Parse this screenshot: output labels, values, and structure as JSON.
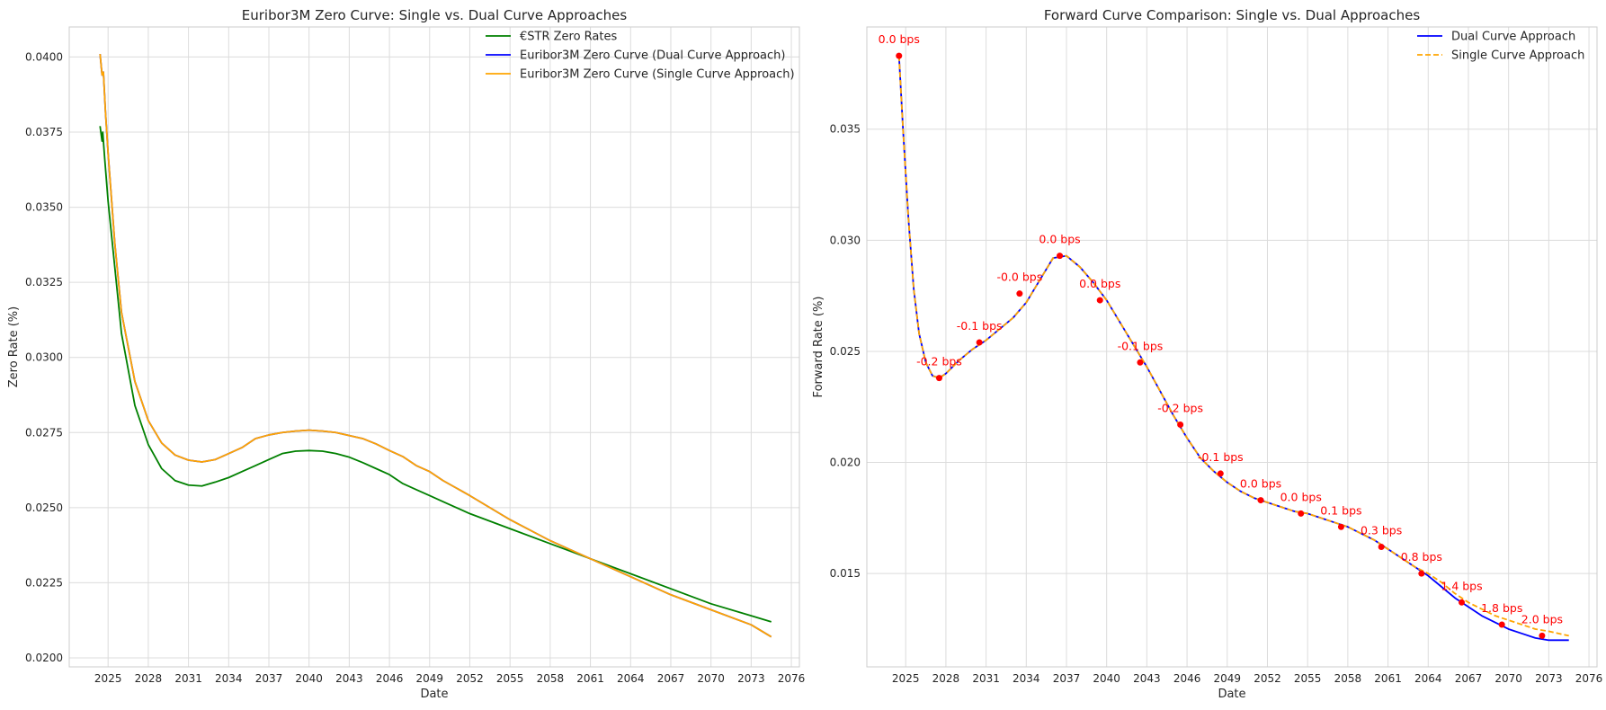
{
  "chart_data": [
    {
      "type": "line",
      "title": "Euribor3M Zero Curve: Single vs. Dual Curve Approaches",
      "xlabel": "Date",
      "ylabel": "Zero Rate (%)",
      "xlim": [
        2022.1,
        2076.6
      ],
      "ylim": [
        0.0197,
        0.041
      ],
      "xticks": [
        "2025",
        "2028",
        "2031",
        "2034",
        "2037",
        "2040",
        "2043",
        "2046",
        "2049",
        "2052",
        "2055",
        "2058",
        "2061",
        "2064",
        "2067",
        "2070",
        "2073",
        "2076"
      ],
      "yticks": [
        "0.0200",
        "0.0225",
        "0.0250",
        "0.0275",
        "0.0300",
        "0.0325",
        "0.0350",
        "0.0375",
        "0.0400"
      ],
      "grid": true,
      "legend_position": "top-right",
      "series": [
        {
          "name": "€STR Zero Rates",
          "color": "#008000",
          "style": "solid",
          "x": [
            2024.4,
            2024.55,
            2024.6,
            2024.75,
            2025,
            2025.5,
            2026,
            2027,
            2028,
            2029,
            2030,
            2031,
            2032,
            2033,
            2034,
            2035,
            2036,
            2037,
            2038,
            2039,
            2040,
            2041,
            2042,
            2043,
            2044,
            2045,
            2046,
            2047,
            2048,
            2049,
            2050,
            2052,
            2055,
            2058,
            2061,
            2064,
            2067,
            2070,
            2073,
            2074.5
          ],
          "y": [
            0.0377,
            0.0372,
            0.0375,
            0.0366,
            0.0352,
            0.033,
            0.0308,
            0.0284,
            0.0271,
            0.0263,
            0.0259,
            0.02575,
            0.02572,
            0.02585,
            0.026,
            0.0262,
            0.0264,
            0.0266,
            0.0268,
            0.02688,
            0.0269,
            0.02688,
            0.0268,
            0.02668,
            0.0265,
            0.0263,
            0.0261,
            0.0258,
            0.0256,
            0.0254,
            0.0252,
            0.0248,
            0.0243,
            0.0238,
            0.0233,
            0.0228,
            0.0223,
            0.0218,
            0.0214,
            0.0212
          ]
        },
        {
          "name": "Euribor3M Zero Curve (Dual Curve Approach)",
          "color": "#0000ff",
          "style": "solid",
          "x": [
            2024.4,
            2024.55,
            2024.65,
            2024.8,
            2025,
            2025.5,
            2026,
            2027,
            2028,
            2029,
            2030,
            2031,
            2032,
            2033,
            2034,
            2035,
            2036,
            2037,
            2038,
            2039,
            2040,
            2041,
            2042,
            2043,
            2044,
            2045,
            2046,
            2047,
            2048,
            2049,
            2050,
            2052,
            2055,
            2058,
            2061,
            2064,
            2067,
            2070,
            2073,
            2074.5
          ],
          "y": [
            0.0401,
            0.0394,
            0.0395,
            0.0382,
            0.0368,
            0.0338,
            0.0315,
            0.0292,
            0.0279,
            0.02715,
            0.02675,
            0.02658,
            0.02652,
            0.0266,
            0.0268,
            0.027,
            0.0273,
            0.02742,
            0.0275,
            0.02755,
            0.02758,
            0.02755,
            0.0275,
            0.0274,
            0.0273,
            0.02712,
            0.0269,
            0.0267,
            0.0264,
            0.0262,
            0.0259,
            0.0254,
            0.0246,
            0.0239,
            0.0233,
            0.0227,
            0.0221,
            0.0216,
            0.0211,
            0.0207
          ]
        },
        {
          "name": "Euribor3M Zero Curve (Single Curve Approach)",
          "color": "#ffa500",
          "style": "solid",
          "x": [
            2024.4,
            2024.55,
            2024.65,
            2024.8,
            2025,
            2025.5,
            2026,
            2027,
            2028,
            2029,
            2030,
            2031,
            2032,
            2033,
            2034,
            2035,
            2036,
            2037,
            2038,
            2039,
            2040,
            2041,
            2042,
            2043,
            2044,
            2045,
            2046,
            2047,
            2048,
            2049,
            2050,
            2052,
            2055,
            2058,
            2061,
            2064,
            2067,
            2070,
            2073,
            2074.5
          ],
          "y": [
            0.0401,
            0.0394,
            0.0395,
            0.0382,
            0.0368,
            0.0338,
            0.0315,
            0.0292,
            0.0279,
            0.02715,
            0.02675,
            0.02658,
            0.02652,
            0.0266,
            0.0268,
            0.027,
            0.0273,
            0.02742,
            0.0275,
            0.02755,
            0.02758,
            0.02755,
            0.0275,
            0.0274,
            0.0273,
            0.02712,
            0.0269,
            0.0267,
            0.0264,
            0.0262,
            0.0259,
            0.0254,
            0.0246,
            0.0239,
            0.0233,
            0.0227,
            0.0221,
            0.0216,
            0.0211,
            0.0207
          ]
        }
      ]
    },
    {
      "type": "line",
      "title": "Forward Curve Comparison: Single vs. Dual Approaches",
      "xlabel": "Date",
      "ylabel": "Forward Rate (%)",
      "xlim": [
        2022.1,
        2076.6
      ],
      "ylim": [
        0.0108,
        0.0396
      ],
      "xticks": [
        "2025",
        "2028",
        "2031",
        "2034",
        "2037",
        "2040",
        "2043",
        "2046",
        "2049",
        "2052",
        "2055",
        "2058",
        "2061",
        "2064",
        "2067",
        "2070",
        "2073",
        "2076"
      ],
      "yticks": [
        "0.015",
        "0.020",
        "0.025",
        "0.030",
        "0.035"
      ],
      "grid": true,
      "legend_position": "top-right",
      "series": [
        {
          "name": "Dual Curve Approach",
          "color": "#0000ff",
          "style": "solid",
          "x": [
            2024.5,
            2024.8,
            2025.2,
            2025.6,
            2026,
            2026.5,
            2027,
            2027.5,
            2028,
            2029,
            2030,
            2031,
            2032,
            2033,
            2034,
            2035,
            2036,
            2037,
            2038,
            2039,
            2040,
            2041,
            2042,
            2043,
            2044,
            2045,
            2046,
            2047,
            2048,
            2049,
            2050,
            2051,
            2052,
            2053,
            2054,
            2055,
            2056,
            2057,
            2058,
            2059,
            2060,
            2061,
            2062,
            2063,
            2064,
            2065,
            2066,
            2067,
            2068,
            2069,
            2070,
            2071,
            2072,
            2073,
            2074.5
          ],
          "y": [
            0.0383,
            0.035,
            0.031,
            0.0278,
            0.0258,
            0.0245,
            0.0239,
            0.0238,
            0.024,
            0.0246,
            0.0251,
            0.0255,
            0.026,
            0.0265,
            0.0272,
            0.0282,
            0.0292,
            0.0293,
            0.0288,
            0.0281,
            0.0273,
            0.0263,
            0.0253,
            0.0243,
            0.0232,
            0.0221,
            0.0211,
            0.0202,
            0.0196,
            0.0191,
            0.0187,
            0.0184,
            0.0182,
            0.018,
            0.0178,
            0.0177,
            0.0175,
            0.0173,
            0.0171,
            0.0168,
            0.0165,
            0.0161,
            0.0157,
            0.0153,
            0.0149,
            0.0144,
            0.0139,
            0.0135,
            0.0131,
            0.0128,
            0.0125,
            0.0123,
            0.0121,
            0.012,
            0.012
          ]
        },
        {
          "name": "Single Curve Approach",
          "color": "#ffa500",
          "style": "dashed",
          "x": [
            2024.5,
            2024.8,
            2025.2,
            2025.6,
            2026,
            2026.5,
            2027,
            2027.5,
            2028,
            2029,
            2030,
            2031,
            2032,
            2033,
            2034,
            2035,
            2036,
            2037,
            2038,
            2039,
            2040,
            2041,
            2042,
            2043,
            2044,
            2045,
            2046,
            2047,
            2048,
            2049,
            2050,
            2051,
            2052,
            2053,
            2054,
            2055,
            2056,
            2057,
            2058,
            2059,
            2060,
            2061,
            2062,
            2063,
            2064,
            2065,
            2066,
            2067,
            2068,
            2069,
            2070,
            2071,
            2072,
            2073,
            2074.5
          ],
          "y": [
            0.0383,
            0.035,
            0.031,
            0.0278,
            0.0258,
            0.0245,
            0.0239,
            0.0238,
            0.024,
            0.0246,
            0.0251,
            0.0255,
            0.026,
            0.0265,
            0.0272,
            0.0282,
            0.0292,
            0.0293,
            0.0288,
            0.0281,
            0.0273,
            0.0263,
            0.0253,
            0.0243,
            0.0232,
            0.0221,
            0.0211,
            0.0202,
            0.0196,
            0.0191,
            0.0187,
            0.0184,
            0.0182,
            0.018,
            0.0178,
            0.0177,
            0.0175,
            0.0173,
            0.0171,
            0.0168,
            0.0165,
            0.0161,
            0.0157,
            0.0153,
            0.015,
            0.0146,
            0.0141,
            0.0137,
            0.0134,
            0.0131,
            0.0129,
            0.0127,
            0.0125,
            0.0124,
            0.0122
          ]
        }
      ],
      "markers": {
        "color": "#ff0000",
        "points": [
          {
            "x": 2024.5,
            "y": 0.0383,
            "label": "0.0 bps"
          },
          {
            "x": 2027.5,
            "y": 0.0238,
            "label": "-0.2 bps"
          },
          {
            "x": 2030.5,
            "y": 0.0254,
            "label": "-0.1 bps"
          },
          {
            "x": 2033.5,
            "y": 0.0276,
            "label": "-0.0 bps"
          },
          {
            "x": 2036.5,
            "y": 0.0293,
            "label": "0.0 bps"
          },
          {
            "x": 2039.5,
            "y": 0.0273,
            "label": "0.0 bps"
          },
          {
            "x": 2042.5,
            "y": 0.0245,
            "label": "-0.1 bps"
          },
          {
            "x": 2045.5,
            "y": 0.0217,
            "label": "-0.2 bps"
          },
          {
            "x": 2048.5,
            "y": 0.0195,
            "label": "-0.1 bps"
          },
          {
            "x": 2051.5,
            "y": 0.0183,
            "label": "0.0 bps"
          },
          {
            "x": 2054.5,
            "y": 0.0177,
            "label": "0.0 bps"
          },
          {
            "x": 2057.5,
            "y": 0.0171,
            "label": "0.1 bps"
          },
          {
            "x": 2060.5,
            "y": 0.0162,
            "label": "0.3 bps"
          },
          {
            "x": 2063.5,
            "y": 0.015,
            "label": "0.8 bps"
          },
          {
            "x": 2066.5,
            "y": 0.0137,
            "label": "1.4 bps"
          },
          {
            "x": 2069.5,
            "y": 0.0127,
            "label": "1.8 bps"
          },
          {
            "x": 2072.5,
            "y": 0.0122,
            "label": "2.0 bps"
          }
        ]
      }
    }
  ]
}
